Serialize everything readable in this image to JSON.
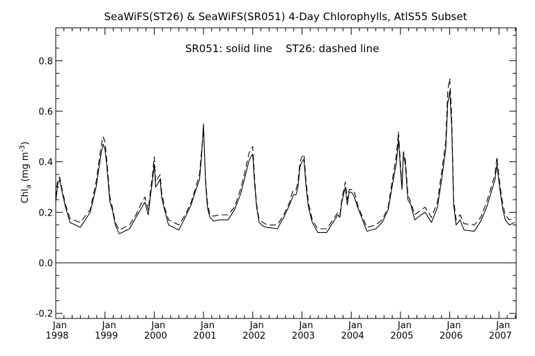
{
  "chart_data": {
    "type": "line",
    "title": "SeaWiFS(ST26) & SeaWiFS(SR051) 4-Day Chlorophylls, AtlS55 Subset",
    "annotation": "SR051: solid line    ST26: dashed line",
    "xlabel": "",
    "ylabel": "Chl_a (mg m^-3)",
    "ylabel_parts": {
      "main": "Chl",
      "sub": "a",
      "unit_open": "(mg m",
      "sup": "-3",
      "unit_close": ")"
    },
    "xlim": [
      1998.0,
      2007.35
    ],
    "ylim": [
      -0.22,
      0.93
    ],
    "yticks": [
      -0.2,
      0.0,
      0.2,
      0.4,
      0.6,
      0.8
    ],
    "ytick_labels": [
      "-0.2",
      "0.0",
      "0.2",
      "0.4",
      "0.6",
      "0.8"
    ],
    "xticks": [
      1998,
      1999,
      2000,
      2001,
      2002,
      2003,
      2004,
      2005,
      2006,
      2007
    ],
    "xtick_month_label": "Jan",
    "xtick_year_labels": [
      "1998",
      "1999",
      "2000",
      "2001",
      "2002",
      "2003",
      "2004",
      "2005",
      "2006",
      "2007"
    ],
    "zero_line": true,
    "grid": false,
    "series": [
      {
        "name": "SR051",
        "style": "solid",
        "x": [
          1998.0,
          1998.04,
          1998.08,
          1998.13,
          1998.2,
          1998.29,
          1998.5,
          1998.7,
          1998.82,
          1998.92,
          1998.96,
          1999.0,
          1999.04,
          1999.1,
          1999.15,
          1999.21,
          1999.29,
          1999.5,
          1999.63,
          1999.75,
          1999.81,
          1999.85,
          1999.88,
          1999.92,
          1999.96,
          2000.0,
          2000.03,
          2000.06,
          2000.09,
          2000.12,
          2000.15,
          2000.21,
          2000.29,
          2000.5,
          2000.63,
          2000.75,
          2000.83,
          2000.92,
          2000.96,
          2001.0,
          2001.04,
          2001.08,
          2001.13,
          2001.21,
          2001.32,
          2001.5,
          2001.63,
          2001.75,
          2001.83,
          2001.92,
          2001.96,
          2002.0,
          2002.04,
          2002.08,
          2002.13,
          2002.21,
          2002.29,
          2002.5,
          2002.63,
          2002.75,
          2002.79,
          2002.83,
          2002.88,
          2002.92,
          2002.96,
          2003.0,
          2003.04,
          2003.08,
          2003.13,
          2003.21,
          2003.32,
          2003.5,
          2003.63,
          2003.73,
          2003.77,
          2003.81,
          2003.88,
          2003.92,
          2003.96,
          2004.0,
          2004.04,
          2004.08,
          2004.13,
          2004.21,
          2004.32,
          2004.5,
          2004.63,
          2004.75,
          2004.83,
          2004.92,
          2004.96,
          2005.0,
          2005.03,
          2005.06,
          2005.1,
          2005.15,
          2005.21,
          2005.29,
          2005.42,
          2005.5,
          2005.63,
          2005.75,
          2005.83,
          2005.92,
          2005.96,
          2006.0,
          2006.04,
          2006.08,
          2006.13,
          2006.21,
          2006.29,
          2006.5,
          2006.63,
          2006.75,
          2006.83,
          2006.92,
          2006.96,
          2007.0,
          2007.04,
          2007.08,
          2007.13,
          2007.21,
          2007.32
        ],
        "y": [
          0.24,
          0.31,
          0.33,
          0.28,
          0.22,
          0.16,
          0.14,
          0.2,
          0.3,
          0.43,
          0.47,
          0.45,
          0.38,
          0.24,
          0.21,
          0.15,
          0.115,
          0.135,
          0.18,
          0.22,
          0.24,
          0.21,
          0.19,
          0.26,
          0.32,
          0.39,
          0.3,
          0.31,
          0.32,
          0.33,
          0.26,
          0.21,
          0.15,
          0.13,
          0.18,
          0.23,
          0.28,
          0.33,
          0.42,
          0.55,
          0.33,
          0.22,
          0.18,
          0.165,
          0.17,
          0.17,
          0.21,
          0.27,
          0.33,
          0.4,
          0.42,
          0.43,
          0.31,
          0.22,
          0.16,
          0.145,
          0.14,
          0.135,
          0.18,
          0.23,
          0.25,
          0.27,
          0.27,
          0.3,
          0.38,
          0.4,
          0.41,
          0.31,
          0.22,
          0.16,
          0.12,
          0.12,
          0.16,
          0.19,
          0.18,
          0.24,
          0.3,
          0.23,
          0.28,
          0.28,
          0.27,
          0.25,
          0.22,
          0.18,
          0.125,
          0.135,
          0.16,
          0.21,
          0.3,
          0.4,
          0.49,
          0.37,
          0.29,
          0.43,
          0.39,
          0.25,
          0.23,
          0.17,
          0.19,
          0.2,
          0.16,
          0.22,
          0.32,
          0.45,
          0.63,
          0.68,
          0.54,
          0.23,
          0.15,
          0.17,
          0.13,
          0.125,
          0.165,
          0.22,
          0.27,
          0.33,
          0.39,
          0.32,
          0.26,
          0.21,
          0.17,
          0.15,
          0.16
        ]
      },
      {
        "name": "ST26",
        "style": "dashed",
        "x": [
          1998.0,
          1998.04,
          1998.08,
          1998.13,
          1998.2,
          1998.29,
          1998.5,
          1998.7,
          1998.82,
          1998.92,
          1998.96,
          1999.0,
          1999.04,
          1999.1,
          1999.15,
          1999.21,
          1999.29,
          1999.5,
          1999.63,
          1999.75,
          1999.81,
          1999.85,
          1999.88,
          1999.92,
          1999.96,
          2000.0,
          2000.03,
          2000.06,
          2000.09,
          2000.12,
          2000.15,
          2000.21,
          2000.29,
          2000.5,
          2000.63,
          2000.75,
          2000.83,
          2000.92,
          2000.96,
          2001.0,
          2001.04,
          2001.08,
          2001.13,
          2001.21,
          2001.32,
          2001.5,
          2001.63,
          2001.75,
          2001.83,
          2001.92,
          2001.96,
          2002.0,
          2002.04,
          2002.08,
          2002.13,
          2002.21,
          2002.29,
          2002.5,
          2002.63,
          2002.75,
          2002.79,
          2002.83,
          2002.88,
          2002.92,
          2002.96,
          2003.0,
          2003.04,
          2003.08,
          2003.13,
          2003.21,
          2003.32,
          2003.5,
          2003.63,
          2003.73,
          2003.77,
          2003.81,
          2003.88,
          2003.92,
          2003.96,
          2004.0,
          2004.04,
          2004.08,
          2004.13,
          2004.21,
          2004.32,
          2004.5,
          2004.63,
          2004.75,
          2004.83,
          2004.92,
          2004.96,
          2005.0,
          2005.03,
          2005.06,
          2005.1,
          2005.15,
          2005.21,
          2005.29,
          2005.42,
          2005.5,
          2005.63,
          2005.75,
          2005.83,
          2005.92,
          2005.96,
          2006.0,
          2006.04,
          2006.08,
          2006.13,
          2006.21,
          2006.29,
          2006.5,
          2006.63,
          2006.75,
          2006.83,
          2006.92,
          2006.96,
          2007.0,
          2007.04,
          2007.08,
          2007.13,
          2007.21,
          2007.32
        ],
        "y": [
          0.26,
          0.33,
          0.34,
          0.29,
          0.23,
          0.175,
          0.16,
          0.21,
          0.32,
          0.46,
          0.5,
          0.48,
          0.4,
          0.26,
          0.22,
          0.16,
          0.13,
          0.15,
          0.19,
          0.24,
          0.26,
          0.23,
          0.21,
          0.28,
          0.34,
          0.42,
          0.32,
          0.33,
          0.34,
          0.35,
          0.28,
          0.22,
          0.17,
          0.15,
          0.19,
          0.24,
          0.29,
          0.35,
          0.44,
          0.53,
          0.34,
          0.24,
          0.19,
          0.185,
          0.19,
          0.19,
          0.22,
          0.29,
          0.35,
          0.43,
          0.45,
          0.46,
          0.33,
          0.23,
          0.17,
          0.16,
          0.15,
          0.15,
          0.19,
          0.24,
          0.27,
          0.29,
          0.29,
          0.32,
          0.4,
          0.42,
          0.43,
          0.33,
          0.24,
          0.17,
          0.135,
          0.135,
          0.17,
          0.2,
          0.19,
          0.25,
          0.32,
          0.25,
          0.29,
          0.29,
          0.29,
          0.27,
          0.23,
          0.19,
          0.14,
          0.15,
          0.17,
          0.22,
          0.32,
          0.43,
          0.52,
          0.39,
          0.3,
          0.44,
          0.41,
          0.27,
          0.24,
          0.19,
          0.21,
          0.22,
          0.18,
          0.24,
          0.35,
          0.48,
          0.68,
          0.73,
          0.58,
          0.25,
          0.17,
          0.19,
          0.155,
          0.15,
          0.18,
          0.24,
          0.29,
          0.35,
          0.42,
          0.34,
          0.28,
          0.23,
          0.19,
          0.17,
          0.18
        ]
      }
    ]
  }
}
